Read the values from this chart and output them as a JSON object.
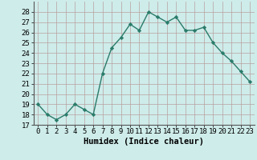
{
  "xlabel": "Humidex (Indice chaleur)",
  "x": [
    0,
    1,
    2,
    3,
    4,
    5,
    6,
    7,
    8,
    9,
    10,
    11,
    12,
    13,
    14,
    15,
    16,
    17,
    18,
    19,
    20,
    21,
    22,
    23
  ],
  "y": [
    19.0,
    18.0,
    17.5,
    18.0,
    19.0,
    18.5,
    18.0,
    22.0,
    24.5,
    25.5,
    26.8,
    26.2,
    28.0,
    27.5,
    27.0,
    27.5,
    26.2,
    26.2,
    26.5,
    25.0,
    24.0,
    23.2,
    22.2,
    21.2
  ],
  "line_color": "#2a7b6a",
  "marker": "D",
  "marker_size": 2.2,
  "bg_color": "#ceecea",
  "grid_color": "#b8a0a0",
  "ylim_min": 17,
  "ylim_max": 29,
  "yticks": [
    17,
    18,
    19,
    20,
    21,
    22,
    23,
    24,
    25,
    26,
    27,
    28
  ],
  "xticks": [
    0,
    1,
    2,
    3,
    4,
    5,
    6,
    7,
    8,
    9,
    10,
    11,
    12,
    13,
    14,
    15,
    16,
    17,
    18,
    19,
    20,
    21,
    22,
    23
  ],
  "xlabel_fontsize": 7.5,
  "tick_fontsize": 6.5,
  "line_width": 1.0
}
